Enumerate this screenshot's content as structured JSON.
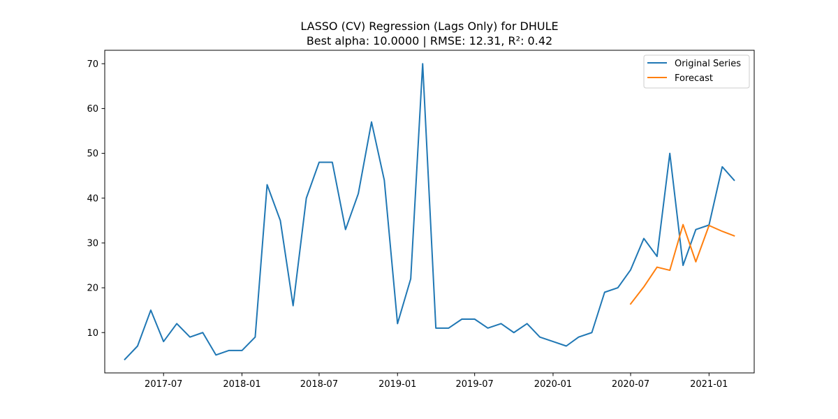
{
  "chart_data": {
    "type": "line",
    "title": "LASSO (CV) Regression (Lags Only) for DHULE",
    "subtitle": "Best alpha: 10.0000 | RMSE: 12.31, R²: 0.42",
    "xlabel": "",
    "ylabel": "",
    "xlim": [
      "2017-02-13",
      "2021-04-17"
    ],
    "ylim": [
      1.0,
      73.0
    ],
    "x_ticks": [
      "2017-07",
      "2018-01",
      "2018-07",
      "2019-01",
      "2019-07",
      "2020-01",
      "2020-07",
      "2021-01"
    ],
    "y_ticks": [
      10,
      20,
      30,
      40,
      50,
      60,
      70
    ],
    "grid": false,
    "legend": "top-right",
    "series": [
      {
        "name": "Original Series",
        "color": "#1f77b4",
        "x": [
          "2017-04",
          "2017-05",
          "2017-06",
          "2017-07",
          "2017-08",
          "2017-09",
          "2017-10",
          "2017-11",
          "2017-12",
          "2018-01",
          "2018-02",
          "2018-03",
          "2018-04",
          "2018-05",
          "2018-06",
          "2018-07",
          "2018-08",
          "2018-09",
          "2018-10",
          "2018-11",
          "2018-12",
          "2019-01",
          "2019-02",
          "2019-03",
          "2019-04",
          "2019-05",
          "2019-06",
          "2019-07",
          "2019-08",
          "2019-09",
          "2019-10",
          "2019-11",
          "2019-12",
          "2020-01",
          "2020-02",
          "2020-03",
          "2020-04",
          "2020-05",
          "2020-06",
          "2020-07",
          "2020-08",
          "2020-09",
          "2020-10",
          "2020-11",
          "2020-12",
          "2021-01",
          "2021-02",
          "2021-03"
        ],
        "y": [
          4,
          7,
          15,
          8,
          12,
          9,
          10,
          5,
          6,
          6,
          9,
          43,
          35,
          16,
          40,
          48,
          48,
          33,
          41,
          57,
          44,
          12,
          22,
          70,
          11,
          11,
          13,
          13,
          11,
          12,
          10,
          12,
          9,
          8,
          7,
          9,
          10,
          19,
          20,
          24,
          31,
          27,
          50,
          25,
          33,
          34,
          47,
          44
        ]
      },
      {
        "name": "Forecast",
        "color": "#ff7f0e",
        "x": [
          "2020-07",
          "2020-08",
          "2020-09",
          "2020-10",
          "2020-11",
          "2020-12",
          "2021-01",
          "2021-02",
          "2021-03"
        ],
        "y": [
          16.4,
          20.2,
          24.6,
          23.9,
          34.1,
          25.8,
          33.9,
          32.6,
          31.6
        ]
      }
    ]
  }
}
